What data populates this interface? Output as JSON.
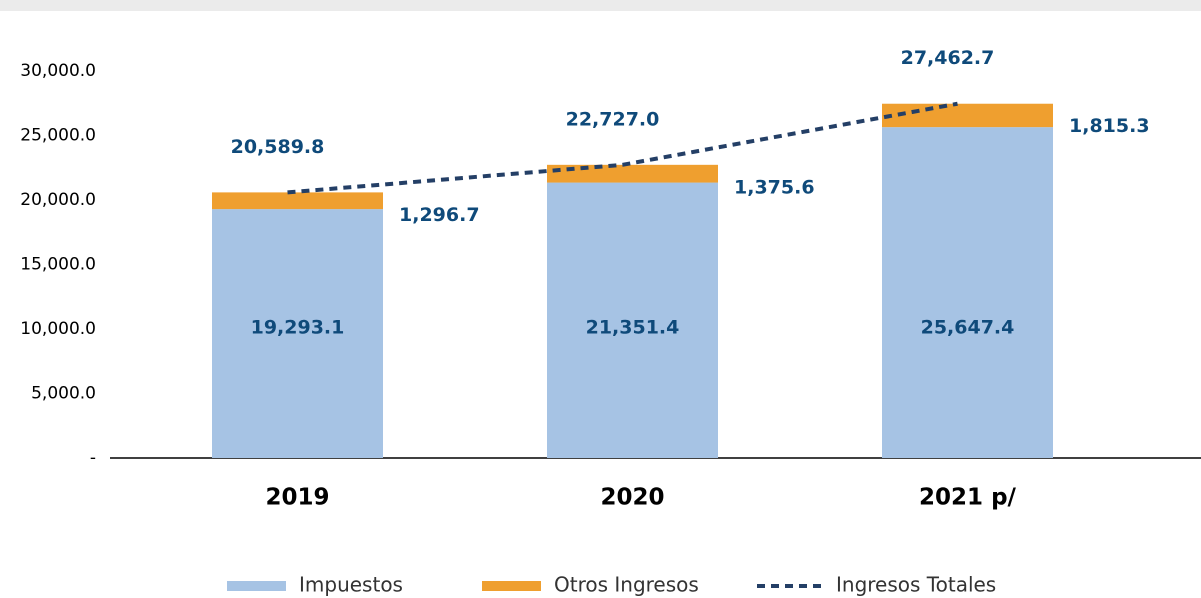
{
  "chart_data": {
    "type": "stacked-bar-line",
    "categories": [
      "2019",
      "2020",
      "2021 p/"
    ],
    "series": [
      {
        "name": "Impuestos",
        "color": "#a6c3e4",
        "kind": "bar",
        "values": [
          19293.1,
          21351.4,
          25647.4
        ],
        "value_labels": [
          "19,293.1",
          "21,351.4",
          "25,647.4"
        ]
      },
      {
        "name": "Otros Ingresos",
        "color": "#ef9f2f",
        "kind": "bar",
        "values": [
          1296.7,
          1375.6,
          1815.3
        ],
        "value_labels": [
          "1,296.7",
          "1,375.6",
          "1,815.3"
        ]
      },
      {
        "name": "Ingresos Totales",
        "color": "#243f66",
        "kind": "line",
        "values": [
          20589.8,
          22727.0,
          27462.7
        ],
        "value_labels": [
          "20,589.8",
          "22,727.0",
          "27,462.7"
        ]
      }
    ],
    "ylim": [
      0,
      30000
    ],
    "yticks": [
      {
        "value": 0,
        "label": "-"
      },
      {
        "value": 5000,
        "label": "5,000.0"
      },
      {
        "value": 10000,
        "label": "10,000.0"
      },
      {
        "value": 15000,
        "label": "15,000.0"
      },
      {
        "value": 20000,
        "label": "20,000.0"
      },
      {
        "value": 25000,
        "label": "25,000.0"
      },
      {
        "value": 30000,
        "label": "30,000.0"
      }
    ],
    "grid": false,
    "legend": "bottom"
  }
}
